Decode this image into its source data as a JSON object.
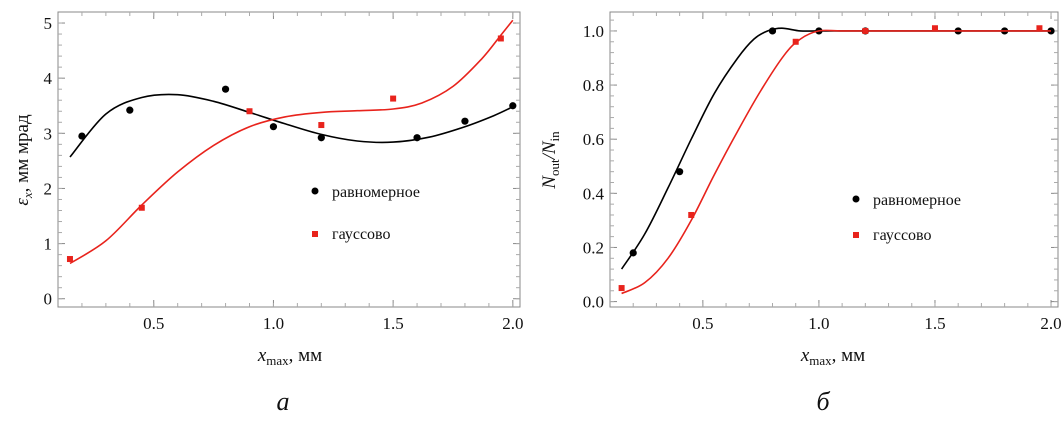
{
  "chart_data": [
    {
      "type": "scatter",
      "panel_label": "a",
      "xlabel": "x",
      "xlabel_sub": "max",
      "xlabel_unit": ", мм",
      "ylabel": "ε",
      "ylabel_sub": "x",
      "ylabel_unit": ", мм мрад",
      "xlim": [
        0.1,
        2.03
      ],
      "ylim": [
        -0.15,
        5.2
      ],
      "xticks": [
        0.5,
        1.0,
        1.5,
        2.0
      ],
      "xtick_labels": [
        "0.5",
        "1.0",
        "1.5",
        "2.0"
      ],
      "yticks": [
        0,
        1,
        2,
        3,
        4,
        5
      ],
      "ytick_labels": [
        "0",
        "1",
        "2",
        "3",
        "4",
        "5"
      ],
      "grid": false,
      "legend_placement": "right-center",
      "series": [
        {
          "name": "равномерное",
          "color": "#000000",
          "marker": "circle",
          "x": [
            0.2,
            0.4,
            0.8,
            1.0,
            1.2,
            1.6,
            1.8,
            2.0
          ],
          "y": [
            2.95,
            3.42,
            3.8,
            3.12,
            2.92,
            2.92,
            3.22,
            3.5
          ],
          "fit_x": [
            0.15,
            0.3,
            0.45,
            0.6,
            0.75,
            0.9,
            1.05,
            1.2,
            1.35,
            1.5,
            1.65,
            1.8,
            1.92,
            2.0
          ],
          "fit_y": [
            2.57,
            3.35,
            3.65,
            3.7,
            3.58,
            3.38,
            3.17,
            2.98,
            2.86,
            2.84,
            2.93,
            3.12,
            3.32,
            3.48
          ]
        },
        {
          "name": "гауссово",
          "color": "#e8231c",
          "marker": "square",
          "x": [
            0.15,
            0.45,
            0.9,
            1.2,
            1.5,
            1.95
          ],
          "y": [
            0.72,
            1.65,
            3.4,
            3.15,
            3.63,
            4.72
          ],
          "fit_x": [
            0.15,
            0.3,
            0.45,
            0.6,
            0.75,
            0.9,
            1.05,
            1.2,
            1.35,
            1.5,
            1.62,
            1.75,
            1.87,
            1.95,
            2.0
          ],
          "fit_y": [
            0.64,
            1.05,
            1.7,
            2.3,
            2.78,
            3.12,
            3.3,
            3.38,
            3.41,
            3.44,
            3.55,
            3.85,
            4.35,
            4.78,
            5.05
          ]
        }
      ]
    },
    {
      "type": "scatter",
      "panel_label": "б",
      "xlabel": "x",
      "xlabel_sub": "max",
      "xlabel_unit": ", мм",
      "ylabel_n": "N",
      "ylabel_sub1": "out",
      "ylabel_slash": "/N",
      "ylabel_sub2": "in",
      "xlim": [
        0.1,
        2.03
      ],
      "ylim": [
        -0.02,
        1.07
      ],
      "xticks": [
        0.5,
        1.0,
        1.5,
        2.0
      ],
      "xtick_labels": [
        "0.5",
        "1.0",
        "1.5",
        "2.0"
      ],
      "yticks": [
        0.0,
        0.2,
        0.4,
        0.6,
        0.8,
        1.0
      ],
      "ytick_labels": [
        "0.0",
        "0.2",
        "0.4",
        "0.6",
        "0.8",
        "1.0"
      ],
      "grid": false,
      "legend_placement": "right-center",
      "series": [
        {
          "name": "равномерное",
          "color": "#000000",
          "marker": "circle",
          "x": [
            0.2,
            0.4,
            0.8,
            1.0,
            1.2,
            1.6,
            1.8,
            2.0
          ],
          "y": [
            0.18,
            0.48,
            1.0,
            1.0,
            1.0,
            1.0,
            1.0,
            1.0
          ],
          "fit_x": [
            0.15,
            0.25,
            0.35,
            0.45,
            0.55,
            0.65,
            0.72,
            0.78,
            0.84,
            0.92,
            1.0,
            1.2,
            1.5,
            1.8,
            2.0
          ],
          "fit_y": [
            0.12,
            0.25,
            0.42,
            0.6,
            0.77,
            0.9,
            0.97,
            1.0,
            1.01,
            1.0,
            1.0,
            1.0,
            1.0,
            1.0,
            1.0
          ]
        },
        {
          "name": "гауссово",
          "color": "#e8231c",
          "marker": "square",
          "x": [
            0.15,
            0.45,
            0.9,
            1.2,
            1.5,
            1.95
          ],
          "y": [
            0.05,
            0.32,
            0.96,
            1.0,
            1.01,
            1.01
          ],
          "fit_x": [
            0.15,
            0.25,
            0.35,
            0.45,
            0.55,
            0.65,
            0.75,
            0.85,
            0.92,
            1.0,
            1.1,
            1.3,
            1.6,
            1.9,
            2.0
          ],
          "fit_y": [
            0.03,
            0.07,
            0.16,
            0.3,
            0.47,
            0.63,
            0.78,
            0.91,
            0.97,
            1.0,
            1.0,
            1.0,
            1.0,
            1.0,
            1.0
          ]
        }
      ]
    }
  ]
}
